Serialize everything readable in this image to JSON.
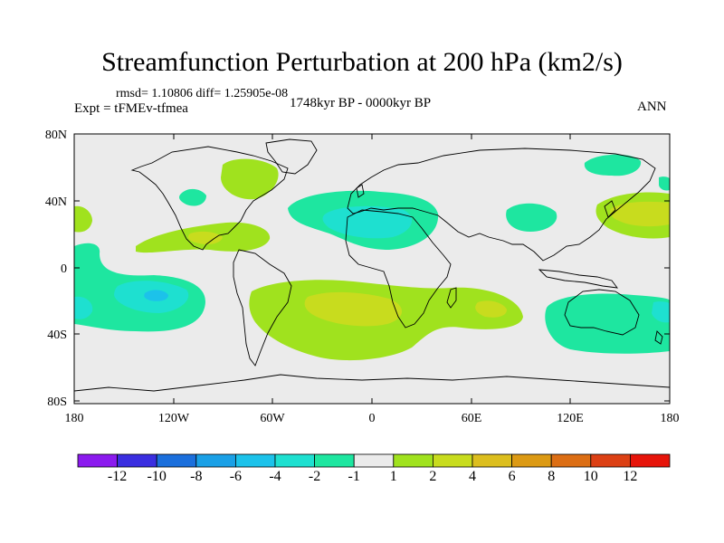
{
  "title": "Streamfunction Perturbation at 200 hPa (km2/s)",
  "stats_text": "rmsd= 1.10806 diff= 1.25905e-08",
  "period": "1748kyr BP - 0000kyr BP",
  "experiment": "Expt = tFMEv-tfmea",
  "season": "ANN",
  "lat_labels": [
    "80N",
    "40N",
    "0",
    "40S",
    "80S"
  ],
  "lon_labels": [
    "180",
    "120W",
    "60W",
    "0",
    "60E",
    "120E",
    "180"
  ],
  "colorbar": {
    "colors": [
      "#8b1aee",
      "#3a2ee0",
      "#1b6fdc",
      "#1aa0e6",
      "#1cc2ea",
      "#1ee0d0",
      "#1ee6a0",
      "#ebebeb",
      "#a0e21e",
      "#c8dc1e",
      "#dcbe1e",
      "#dc9a14",
      "#dc6e14",
      "#dc4014",
      "#e6140a"
    ],
    "labels": [
      "-12",
      "-10",
      "-8",
      "-6",
      "-4",
      "-2",
      "-1",
      "1",
      "2",
      "4",
      "6",
      "8",
      "10",
      "12"
    ]
  },
  "map_colors": {
    "background": "#ebebeb",
    "neg1": "#1ee6a0",
    "neg2": "#1ee0d0",
    "neg3": "#1cc2ea",
    "pos1": "#a0e21e",
    "pos2": "#c8dc1e",
    "coast": "#000000"
  }
}
